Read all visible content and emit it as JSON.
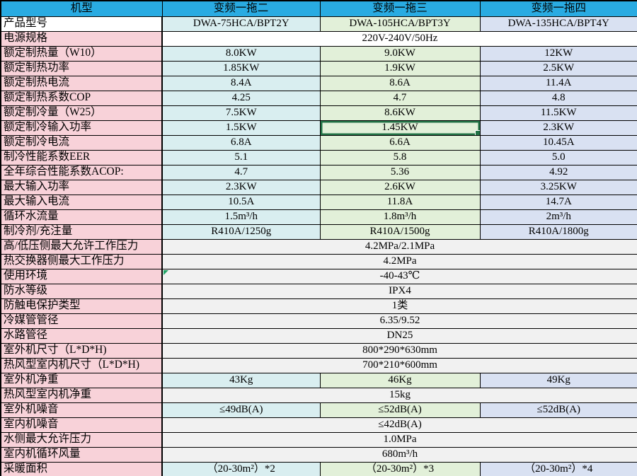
{
  "colors": {
    "header_bg": "#29abe2",
    "label_pink": "#f8d2d9",
    "col_teal": "#d9eef0",
    "col_green": "#e2f0d9",
    "col_purple": "#d9e1f2",
    "merged_gray": "#f1f1f1",
    "selection_green": "#217346",
    "marker_green": "#21a366",
    "border": "#000000",
    "text": "#000000"
  },
  "table": {
    "header": [
      "机型",
      "变频一拖二",
      "变频一拖三",
      "变频一拖四"
    ],
    "selection": {
      "row_index": 7,
      "col_index": 1
    },
    "rows": [
      {
        "kind": "data",
        "label": "产品型号",
        "label_bg": "white",
        "values": [
          "DWA-75HCA/BPT2Y",
          "DWA-105HCA/BPT3Y",
          "DWA-135HCA/BPT4Y"
        ]
      },
      {
        "kind": "merged",
        "label": "电源规格",
        "bg": "white",
        "value": "220V-240V/50Hz"
      },
      {
        "kind": "data",
        "label": "额定制热量（W10）",
        "values": [
          "8.0KW",
          "9.0KW",
          "12KW"
        ]
      },
      {
        "kind": "data",
        "label": "额定制热功率",
        "values": [
          "1.85KW",
          "1.9KW",
          "2.5KW"
        ]
      },
      {
        "kind": "data",
        "label": "额定制热电流",
        "values": [
          "8.4A",
          "8.6A",
          "11.4A"
        ]
      },
      {
        "kind": "data",
        "label": "额定制热系数COP",
        "values": [
          "4.25",
          "4.7",
          "4.8"
        ]
      },
      {
        "kind": "data",
        "label": "额定制冷量（W25）",
        "values": [
          "7.5KW",
          "8.6KW",
          "11.5KW"
        ]
      },
      {
        "kind": "data",
        "label": "额定制冷输入功率",
        "values": [
          "1.5KW",
          "1.45KW",
          "2.3KW"
        ]
      },
      {
        "kind": "data",
        "label": "额定制冷电流",
        "values": [
          "6.8A",
          "6.6A",
          "10.45A"
        ]
      },
      {
        "kind": "data",
        "label": "制冷性能系数EER",
        "values": [
          "5.1",
          "5.8",
          "5.0"
        ]
      },
      {
        "kind": "data",
        "label": "全年综合性能系数ACOP:",
        "values": [
          "4.7",
          "5.36",
          "4.92"
        ]
      },
      {
        "kind": "data",
        "label": "最大输入功率",
        "values": [
          "2.3KW",
          "2.6KW",
          "3.25KW"
        ]
      },
      {
        "kind": "data",
        "label": "最大输入电流",
        "values": [
          "10.5A",
          "11.8A",
          "14.7A"
        ]
      },
      {
        "kind": "data",
        "label": "循环水流量",
        "values": [
          "1.5m³/h",
          "1.8m³/h",
          "2m³/h"
        ]
      },
      {
        "kind": "data",
        "label": "制冷剂/充注量",
        "values": [
          "R410A/1250g",
          "R410A/1500g",
          "R410A/1800g"
        ]
      },
      {
        "kind": "merged",
        "label": "高/低压侧最大允许工作压力",
        "value": "4.2MPa/2.1MPa"
      },
      {
        "kind": "merged",
        "label": "热交换器侧最大工作压力",
        "value": "4.2MPa"
      },
      {
        "kind": "merged",
        "label": "使用环境",
        "value": "-40-43℃",
        "marker": "error-indicator"
      },
      {
        "kind": "merged",
        "label": "防水等级",
        "value": "IPX4"
      },
      {
        "kind": "merged",
        "label": "防触电保护类型",
        "value": "1类"
      },
      {
        "kind": "merged",
        "label": "冷媒管管径",
        "value": "6.35/9.52"
      },
      {
        "kind": "merged",
        "label": "水路管径",
        "value": "DN25"
      },
      {
        "kind": "merged",
        "label": "室外机尺寸（L*D*H)",
        "value": "800*290*630mm"
      },
      {
        "kind": "merged",
        "label": "热风型室内机尺寸（L*D*H)",
        "value": "700*210*600mm"
      },
      {
        "kind": "data",
        "label": "室外机净重",
        "values": [
          "43Kg",
          "46Kg",
          "49Kg"
        ]
      },
      {
        "kind": "merged",
        "label": "热风型室内机净重",
        "value": "15kg"
      },
      {
        "kind": "data",
        "label": "室外机噪音",
        "values": [
          "≤49dB(A)",
          "≤52dB(A)",
          "≤52dB(A)"
        ]
      },
      {
        "kind": "merged",
        "label": "室内机噪音",
        "value": "≤42dB(A)"
      },
      {
        "kind": "merged",
        "label": "水侧最大允许压力",
        "value": "1.0MPa"
      },
      {
        "kind": "merged",
        "label": "室内机循环风量",
        "value": "680m³/h"
      },
      {
        "kind": "data",
        "label": "采暖面积",
        "values": [
          "（20-30m²）*2",
          "（20-30m²）*3",
          "（20-30m²）*4"
        ]
      }
    ]
  }
}
